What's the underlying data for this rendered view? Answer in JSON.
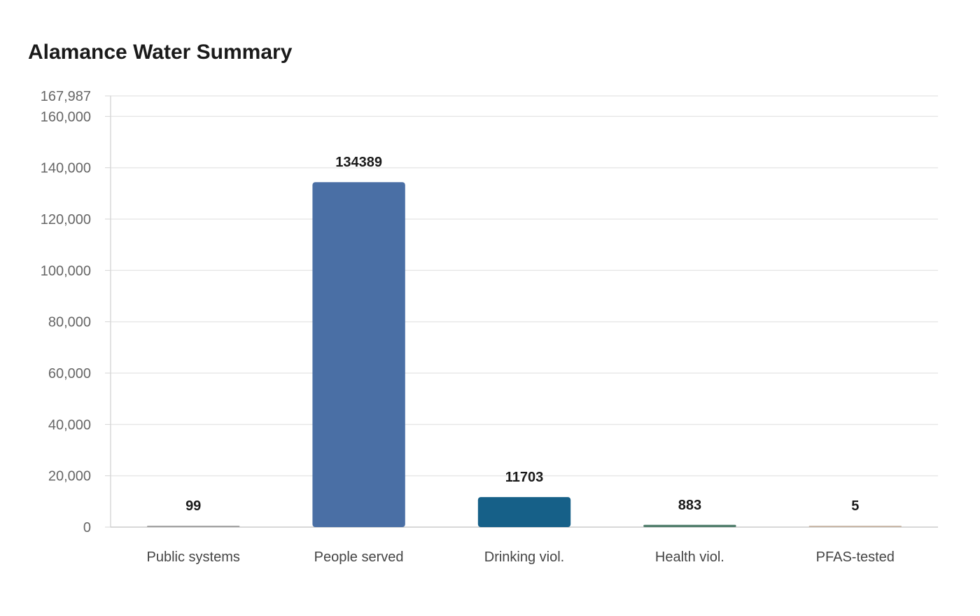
{
  "chart_data": {
    "type": "bar",
    "title": "Alamance Water Summary",
    "xlabel": "",
    "ylabel": "",
    "categories": [
      "Public systems",
      "People served",
      "Drinking viol.",
      "Health viol.",
      "PFAS-tested"
    ],
    "values": [
      99,
      134389,
      11703,
      883,
      5
    ],
    "colors": [
      "#a3a3a3",
      "#4a6fa5",
      "#166088",
      "#4f7d6b",
      "#c9b8a8"
    ],
    "ylim": [
      0,
      167987
    ],
    "yticks": [
      0,
      20000,
      40000,
      60000,
      80000,
      100000,
      120000,
      140000,
      160000,
      167987
    ],
    "ytick_labels": [
      "0",
      "20,000",
      "40,000",
      "60,000",
      "80,000",
      "100,000",
      "120,000",
      "140,000",
      "160,000",
      "167,987"
    ],
    "grid": true,
    "legend": "none"
  }
}
